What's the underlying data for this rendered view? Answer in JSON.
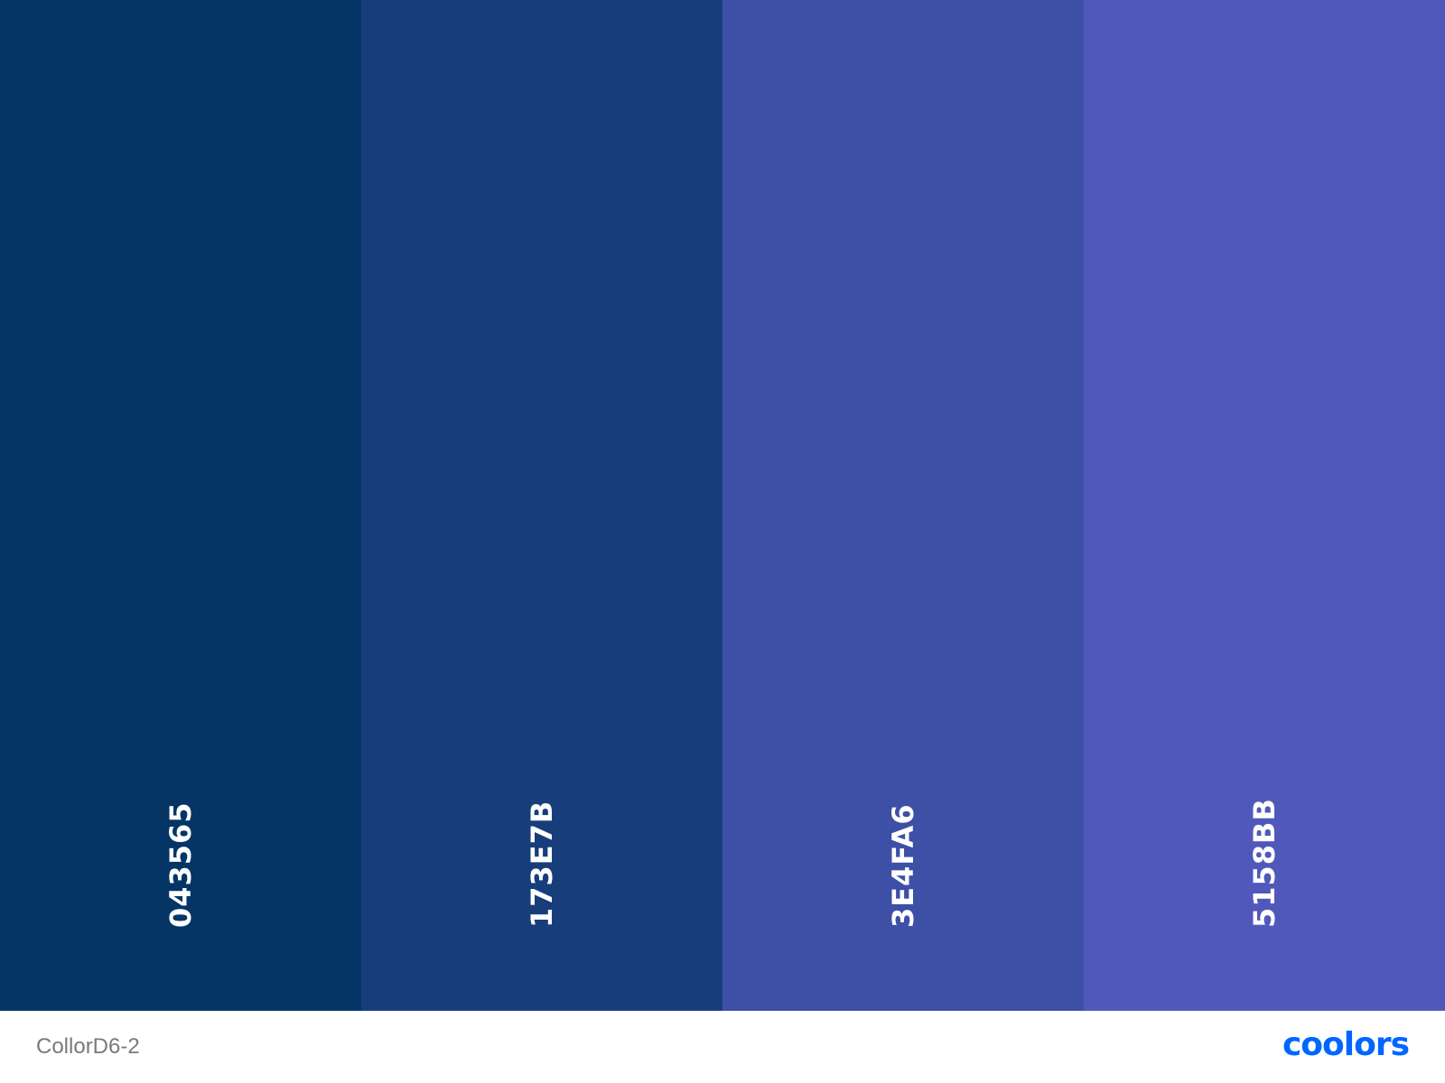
{
  "palette": {
    "name": "CollorD6-2",
    "swatches": [
      {
        "hex": "043565",
        "color": "#043565"
      },
      {
        "hex": "173E7B",
        "color": "#173E7B"
      },
      {
        "hex": "3E4FA6",
        "color": "#3E4FA6"
      },
      {
        "hex": "5158BB",
        "color": "#5158BB"
      }
    ]
  },
  "brand": {
    "logo_text": "coolors",
    "color": "#0066ff"
  }
}
